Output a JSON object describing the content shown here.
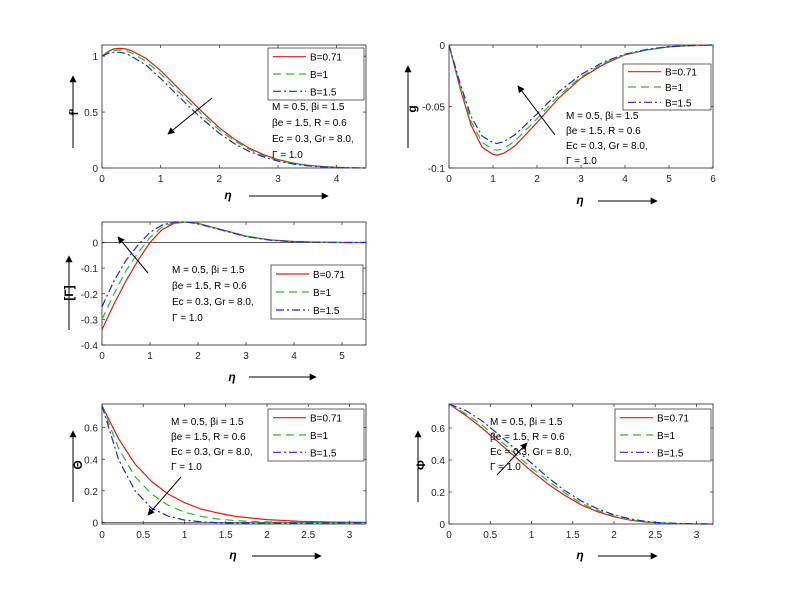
{
  "chart_data": [
    {
      "type": "line",
      "ylabel": "f'",
      "xlabel": "η",
      "xlim": [
        0,
        4.5
      ],
      "ylim": [
        0,
        1.1
      ],
      "x_ticks": [
        "0",
        "1",
        "2",
        "3",
        "4"
      ],
      "y_ticks": [
        "0",
        "0.5",
        "1"
      ],
      "legend": "top-right",
      "params": [
        "M = 0.5, βi = 1.5",
        "βe = 1.5, R = 0.6",
        "Ec = 0.3, Gr = 8.0,",
        "Γ = 1.0"
      ],
      "series": [
        {
          "name": "B=0.71",
          "color": "#e41a1c",
          "dash": "solid",
          "x": [
            0,
            0.1,
            0.2,
            0.3,
            0.4,
            0.5,
            0.75,
            1.0,
            1.25,
            1.5,
            1.75,
            2.0,
            2.25,
            2.5,
            2.75,
            3.0,
            3.25,
            3.5,
            3.75,
            4.0,
            4.25,
            4.5
          ],
          "y": [
            1.0,
            1.04,
            1.065,
            1.07,
            1.065,
            1.05,
            0.98,
            0.87,
            0.74,
            0.61,
            0.48,
            0.36,
            0.26,
            0.18,
            0.12,
            0.075,
            0.045,
            0.025,
            0.013,
            0.006,
            0.002,
            0.0
          ]
        },
        {
          "name": "B=1",
          "color": "#22c022",
          "dash": "8 5",
          "x": [
            0,
            0.1,
            0.2,
            0.3,
            0.4,
            0.5,
            0.75,
            1.0,
            1.25,
            1.5,
            1.75,
            2.0,
            2.25,
            2.5,
            2.75,
            3.0,
            3.25,
            3.5,
            3.75,
            4.0,
            4.25,
            4.5
          ],
          "y": [
            1.0,
            1.035,
            1.05,
            1.055,
            1.05,
            1.03,
            0.955,
            0.84,
            0.71,
            0.58,
            0.455,
            0.34,
            0.245,
            0.17,
            0.11,
            0.07,
            0.042,
            0.023,
            0.012,
            0.005,
            0.002,
            0.0
          ]
        },
        {
          "name": "B=1.5",
          "color": "#1a2bd6",
          "dash": "8 3 2 3",
          "x": [
            0,
            0.1,
            0.2,
            0.3,
            0.4,
            0.5,
            0.75,
            1.0,
            1.25,
            1.5,
            1.75,
            2.0,
            2.25,
            2.5,
            2.75,
            3.0,
            3.25,
            3.5,
            3.75,
            4.0,
            4.25,
            4.5
          ],
          "y": [
            1.0,
            1.025,
            1.035,
            1.035,
            1.025,
            1.0,
            0.92,
            0.8,
            0.67,
            0.54,
            0.42,
            0.31,
            0.22,
            0.15,
            0.1,
            0.062,
            0.037,
            0.02,
            0.01,
            0.004,
            0.001,
            0.0
          ]
        }
      ]
    },
    {
      "type": "line",
      "ylabel": "g",
      "xlabel": "η",
      "xlim": [
        0,
        6
      ],
      "ylim": [
        -0.1,
        0
      ],
      "x_ticks": [
        "0",
        "1",
        "2",
        "3",
        "4",
        "5",
        "6"
      ],
      "y_ticks": [
        "-0.1",
        "-0.05",
        "0"
      ],
      "legend": "top-right",
      "params": [
        "M = 0.5, βi = 1.5",
        "βe = 1.5, R = 0.6",
        "Ec = 0.3, Gr = 8.0,",
        "Γ = 1.0"
      ],
      "series": [
        {
          "name": "B=0.71",
          "color": "#e41a1c",
          "dash": "solid",
          "x": [
            0,
            0.25,
            0.5,
            0.75,
            1.0,
            1.1,
            1.25,
            1.5,
            2.0,
            2.5,
            3.0,
            3.5,
            4.0,
            4.5,
            5.0,
            5.5,
            6.0
          ],
          "y": [
            0,
            -0.035,
            -0.065,
            -0.083,
            -0.089,
            -0.0895,
            -0.088,
            -0.082,
            -0.063,
            -0.043,
            -0.027,
            -0.016,
            -0.008,
            -0.004,
            -0.0015,
            -0.0005,
            0
          ]
        },
        {
          "name": "B=1",
          "color": "#22c022",
          "dash": "8 5",
          "x": [
            0,
            0.25,
            0.5,
            0.75,
            1.0,
            1.1,
            1.25,
            1.5,
            2.0,
            2.5,
            3.0,
            3.5,
            4.0,
            4.5,
            5.0,
            5.5,
            6.0
          ],
          "y": [
            0,
            -0.033,
            -0.062,
            -0.079,
            -0.085,
            -0.0855,
            -0.084,
            -0.078,
            -0.06,
            -0.041,
            -0.026,
            -0.015,
            -0.008,
            -0.004,
            -0.0015,
            -0.0005,
            0
          ]
        },
        {
          "name": "B=1.5",
          "color": "#1a2bd6",
          "dash": "8 3 2 3",
          "x": [
            0,
            0.25,
            0.5,
            0.75,
            1.0,
            1.1,
            1.25,
            1.5,
            2.0,
            2.5,
            3.0,
            3.5,
            4.0,
            4.5,
            5.0,
            5.5,
            6.0
          ],
          "y": [
            0,
            -0.031,
            -0.058,
            -0.074,
            -0.0795,
            -0.08,
            -0.0785,
            -0.073,
            -0.056,
            -0.038,
            -0.024,
            -0.014,
            -0.0075,
            -0.0035,
            -0.0013,
            -0.0004,
            0
          ]
        }
      ]
    },
    {
      "type": "line",
      "ylabel": "[Γ]",
      "xlabel": "η",
      "xlim": [
        0,
        5.5
      ],
      "ylim": [
        -0.4,
        0.08
      ],
      "x_ticks": [
        "0",
        "1",
        "2",
        "3",
        "4",
        "5"
      ],
      "y_ticks": [
        "-0.4",
        "-0.3",
        "-0.2",
        "-0.1",
        "0"
      ],
      "legend": "right",
      "params": [
        "M = 0.5, βi = 1.5",
        "βe = 1.5, R = 0.6",
        "Ec = 0.3, Gr = 8.0,",
        "Γ = 1.0"
      ],
      "series": [
        {
          "name": "B=0.71",
          "color": "#e41a1c",
          "dash": "solid",
          "x": [
            0,
            0.25,
            0.5,
            0.75,
            1.0,
            1.25,
            1.5,
            1.75,
            2.0,
            2.5,
            3.0,
            3.5,
            4.0,
            4.5,
            5.0,
            5.5
          ],
          "y": [
            -0.34,
            -0.24,
            -0.15,
            -0.07,
            0.0,
            0.05,
            0.075,
            0.08,
            0.075,
            0.05,
            0.025,
            0.01,
            0.004,
            0.001,
            0.0,
            0.0
          ]
        },
        {
          "name": "B=1",
          "color": "#22c022",
          "dash": "8 5",
          "x": [
            0,
            0.25,
            0.5,
            0.75,
            1.0,
            1.25,
            1.5,
            1.75,
            2.0,
            2.5,
            3.0,
            3.5,
            4.0,
            4.5,
            5.0,
            5.5
          ],
          "y": [
            -0.3,
            -0.2,
            -0.11,
            -0.04,
            0.02,
            0.06,
            0.078,
            0.08,
            0.074,
            0.049,
            0.024,
            0.01,
            0.004,
            0.001,
            0.0,
            0.0
          ]
        },
        {
          "name": "B=1.5",
          "color": "#1a2bd6",
          "dash": "8 3 2 3",
          "x": [
            0,
            0.25,
            0.5,
            0.75,
            1.0,
            1.25,
            1.5,
            1.75,
            2.0,
            2.5,
            3.0,
            3.5,
            4.0,
            4.5,
            5.0,
            5.5
          ],
          "y": [
            -0.25,
            -0.15,
            -0.07,
            -0.01,
            0.04,
            0.068,
            0.08,
            0.08,
            0.073,
            0.048,
            0.023,
            0.009,
            0.003,
            0.001,
            0.0,
            0.0
          ]
        }
      ]
    },
    {
      "type": "line",
      "ylabel": "Θ",
      "xlabel": "η",
      "xlim": [
        0,
        3.2
      ],
      "ylim": [
        -0.01,
        0.75
      ],
      "x_ticks": [
        "0",
        "0.5",
        "1",
        "1.5",
        "2",
        "2.5",
        "3"
      ],
      "y_ticks": [
        "0",
        "0.2",
        "0.4",
        "0.6"
      ],
      "legend": "top-right",
      "params": [
        "M = 0.5, βi = 1.5",
        "βe = 1.5, R = 0.6",
        "Ec = 0.3, Gr = 8.0,",
        "Γ = 1.0"
      ],
      "series": [
        {
          "name": "B=0.71",
          "color": "#e41a1c",
          "dash": "solid",
          "x": [
            0,
            0.2,
            0.4,
            0.6,
            0.8,
            1.0,
            1.2,
            1.4,
            1.6,
            1.8,
            2.0,
            2.4,
            2.8,
            3.2
          ],
          "y": [
            0.74,
            0.53,
            0.37,
            0.26,
            0.18,
            0.125,
            0.085,
            0.06,
            0.04,
            0.028,
            0.018,
            0.007,
            0.002,
            0.0
          ]
        },
        {
          "name": "B=1",
          "color": "#22c022",
          "dash": "8 5",
          "x": [
            0,
            0.2,
            0.4,
            0.6,
            0.8,
            1.0,
            1.2,
            1.4,
            1.6,
            1.8,
            2.0,
            2.4,
            2.8,
            3.2
          ],
          "y": [
            0.74,
            0.47,
            0.29,
            0.18,
            0.11,
            0.065,
            0.038,
            0.022,
            0.012,
            0.006,
            0.003,
            0.0,
            -0.002,
            -0.002
          ]
        },
        {
          "name": "B=1.5",
          "color": "#1a2bd6",
          "dash": "8 3 2 3",
          "x": [
            0,
            0.2,
            0.4,
            0.6,
            0.8,
            1.0,
            1.2,
            1.4,
            1.6,
            1.8,
            2.0,
            2.4,
            2.8,
            3.2
          ],
          "y": [
            0.74,
            0.4,
            0.2,
            0.09,
            0.04,
            0.015,
            0.004,
            -0.002,
            -0.004,
            -0.005,
            -0.005,
            -0.004,
            -0.003,
            -0.002
          ]
        }
      ]
    },
    {
      "type": "line",
      "ylabel": "Φ",
      "xlabel": "η",
      "xlim": [
        0,
        3.2
      ],
      "ylim": [
        0,
        0.75
      ],
      "x_ticks": [
        "0",
        "0.5",
        "1",
        "1.5",
        "2",
        "2.5",
        "3"
      ],
      "y_ticks": [
        "0",
        "0.2",
        "0.4",
        "0.6"
      ],
      "legend": "top-right",
      "params": [
        "M = 0.5, βi = 1.5",
        "βe = 1.5, R = 0.6",
        "Ec = 0.3, Gr = 8.0,",
        "Γ = 1.0"
      ],
      "series": [
        {
          "name": "B=0.71",
          "color": "#e41a1c",
          "dash": "solid",
          "x": [
            0,
            0.2,
            0.4,
            0.6,
            0.8,
            1.0,
            1.2,
            1.4,
            1.6,
            1.8,
            2.0,
            2.2,
            2.4,
            2.6,
            2.8,
            3.0,
            3.2
          ],
          "y": [
            0.75,
            0.68,
            0.6,
            0.51,
            0.42,
            0.33,
            0.25,
            0.18,
            0.12,
            0.077,
            0.045,
            0.024,
            0.011,
            0.005,
            0.002,
            0.0,
            0.0
          ]
        },
        {
          "name": "B=1",
          "color": "#22c022",
          "dash": "8 5",
          "x": [
            0,
            0.2,
            0.4,
            0.6,
            0.8,
            1.0,
            1.2,
            1.4,
            1.6,
            1.8,
            2.0,
            2.2,
            2.4,
            2.6,
            2.8,
            3.0,
            3.2
          ],
          "y": [
            0.75,
            0.69,
            0.62,
            0.53,
            0.44,
            0.35,
            0.27,
            0.195,
            0.13,
            0.085,
            0.05,
            0.027,
            0.013,
            0.006,
            0.002,
            0.0,
            0.0
          ]
        },
        {
          "name": "B=1.5",
          "color": "#1a2bd6",
          "dash": "8 3 2 3",
          "x": [
            0,
            0.2,
            0.4,
            0.6,
            0.8,
            1.0,
            1.2,
            1.4,
            1.6,
            1.8,
            2.0,
            2.2,
            2.4,
            2.6,
            2.8,
            3.0,
            3.2
          ],
          "y": [
            0.75,
            0.71,
            0.645,
            0.56,
            0.47,
            0.38,
            0.29,
            0.21,
            0.145,
            0.095,
            0.057,
            0.031,
            0.015,
            0.007,
            0.003,
            0.001,
            0.0
          ]
        }
      ]
    }
  ]
}
